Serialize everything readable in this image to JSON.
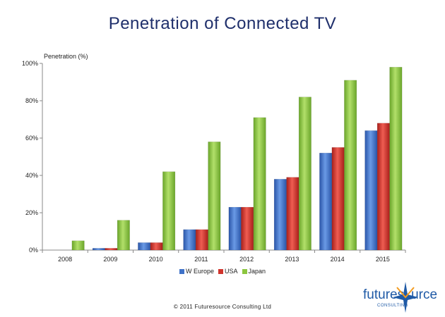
{
  "chart_data": {
    "type": "bar",
    "title": "Penetration of Connected TV",
    "ylabel": "Penetration (%)",
    "xlabel": "",
    "categories": [
      "2008",
      "2009",
      "2010",
      "2011",
      "2012",
      "2013",
      "2014",
      "2015"
    ],
    "ylim": [
      0,
      100
    ],
    "yticks": [
      0,
      20,
      40,
      60,
      80,
      100
    ],
    "ytick_labels": [
      "0%",
      "20%",
      "40%",
      "60%",
      "80%",
      "100%"
    ],
    "legend_position": "bottom",
    "grid": false,
    "series": [
      {
        "name": "W Europe",
        "color": "#3f72c8",
        "values": [
          0,
          1,
          4,
          11,
          23,
          38,
          52,
          64
        ]
      },
      {
        "name": "USA",
        "color": "#d0342c",
        "values": [
          0,
          1,
          4,
          11,
          23,
          39,
          55,
          68
        ]
      },
      {
        "name": "Japan",
        "color": "#8cc63f",
        "values": [
          5,
          16,
          42,
          58,
          71,
          82,
          91,
          98
        ]
      }
    ]
  },
  "footer": {
    "copyright": "© 2011 Futuresource Consulting Ltd"
  },
  "logo": {
    "word_left": "futures",
    "word_right": "urce",
    "sub": "CONSULTING",
    "icon": "star-icon"
  }
}
